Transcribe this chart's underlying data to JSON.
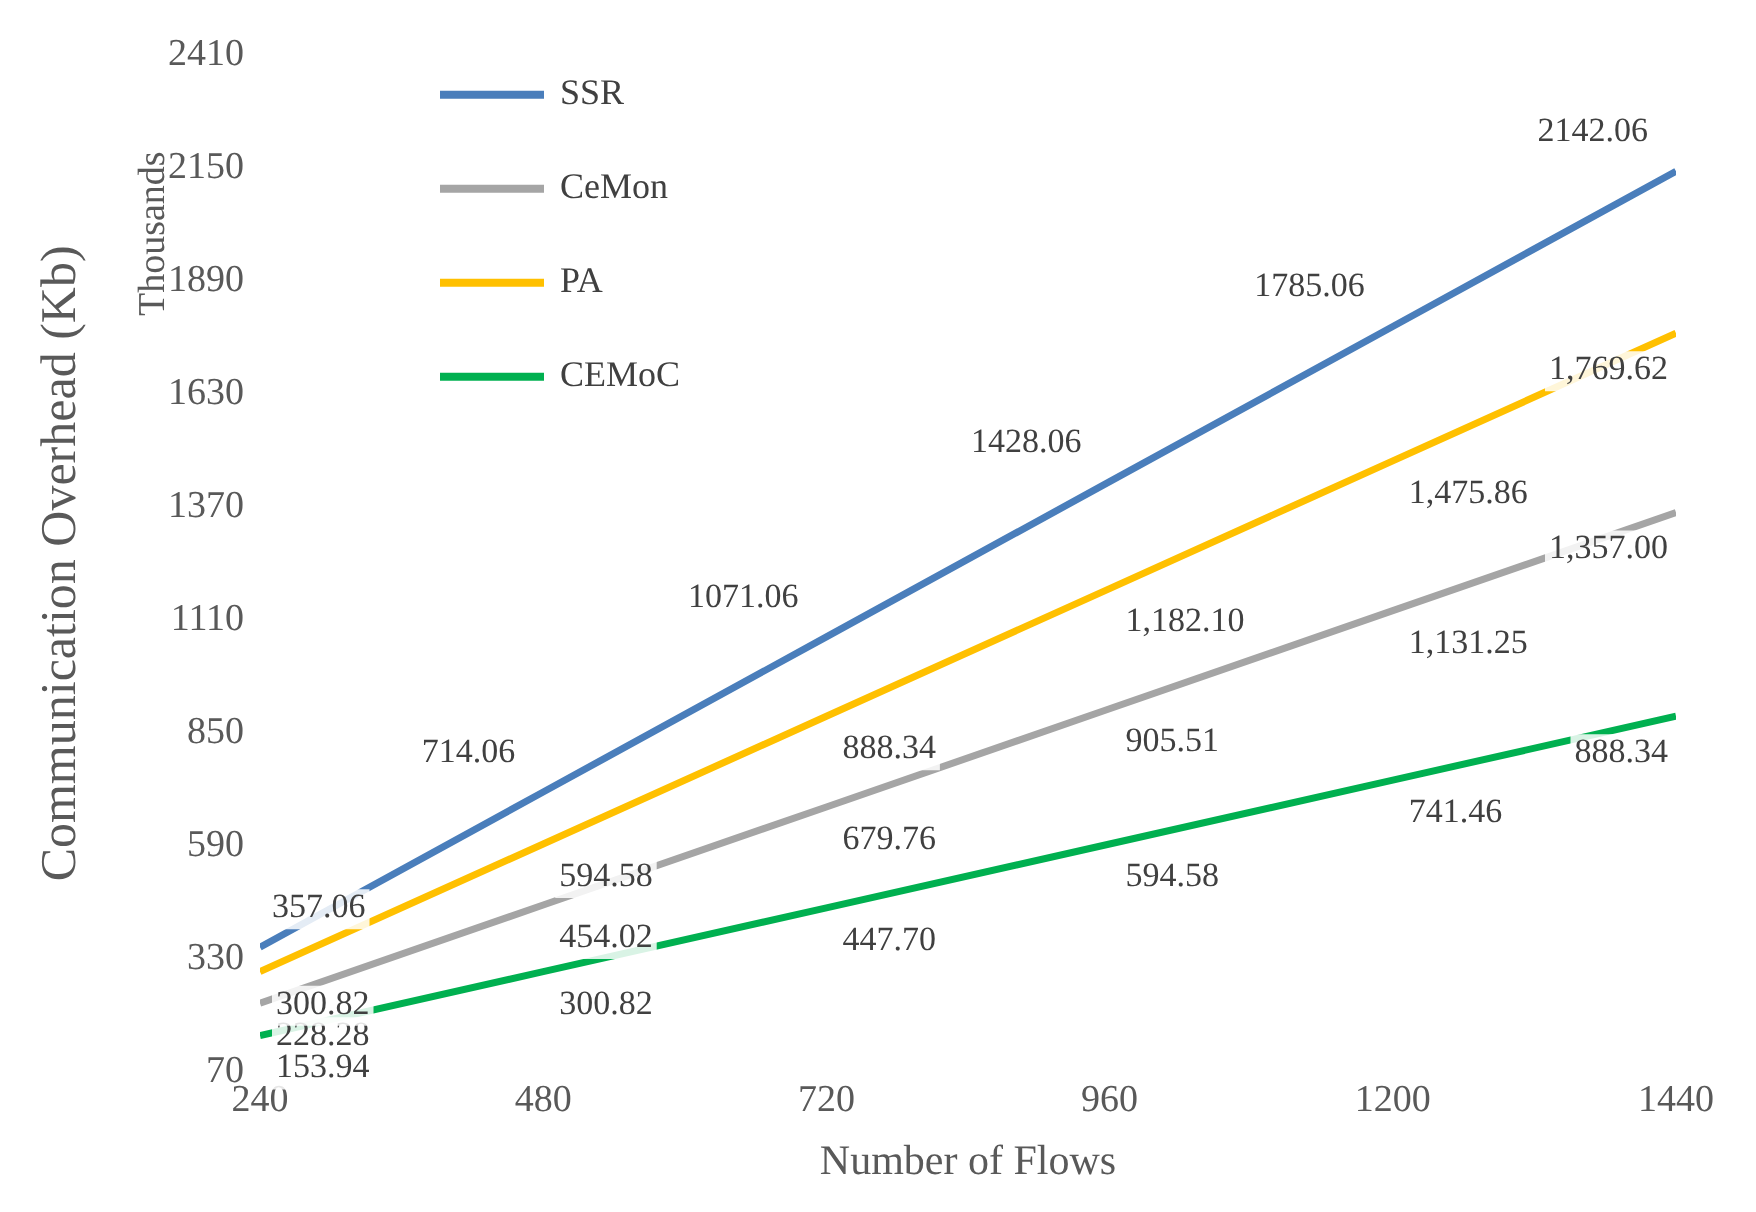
{
  "chart_data": {
    "type": "line",
    "xlabel": "Number of Flows",
    "ylabel": "Communication Overhead (Kb)",
    "annotations": [
      "Thousands"
    ],
    "x": [
      240,
      480,
      720,
      960,
      1200,
      1440
    ],
    "xlim": [
      240,
      1440
    ],
    "xticks": [
      240,
      480,
      720,
      960,
      1200,
      1440
    ],
    "ylim": [
      70,
      2410
    ],
    "yticks": [
      70,
      330,
      590,
      850,
      1110,
      1370,
      1630,
      1890,
      2150,
      2410
    ],
    "grid": false,
    "legend": "top left",
    "marker": "none",
    "line_style": "solid",
    "series": [
      {
        "name": "SSR",
        "color": "#4a7ebb",
        "values": [
          357.06,
          714.06,
          1071.06,
          1428.06,
          1785.06,
          2142.06
        ],
        "value_labels": [
          "357.06",
          "714.06",
          "1071.06",
          "1428.06",
          "1785.06",
          "2142.06"
        ]
      },
      {
        "name": "CeMon",
        "color": "#a5a5a5",
        "values": [
          228.28,
          454.02,
          679.76,
          905.51,
          1131.25,
          1357.0
        ],
        "value_labels": [
          "228.28",
          "454.02",
          "679.76",
          "905.51",
          "1,131.25",
          "1,357.00"
        ]
      },
      {
        "name": "PA",
        "color": "#ffc000",
        "values": [
          300.82,
          594.58,
          888.34,
          1182.1,
          1475.86,
          1769.62
        ],
        "value_labels": [
          "300.82",
          "594.58",
          "888.34",
          "1,182.10",
          "1,475.86",
          "1,769.62"
        ]
      },
      {
        "name": "CEMoC",
        "color": "#00b050",
        "values": [
          153.94,
          300.82,
          447.7,
          594.58,
          741.46,
          888.34
        ],
        "value_labels": [
          "153.94",
          "300.82",
          "447.70",
          "594.58",
          "741.46",
          "888.34"
        ]
      }
    ]
  }
}
